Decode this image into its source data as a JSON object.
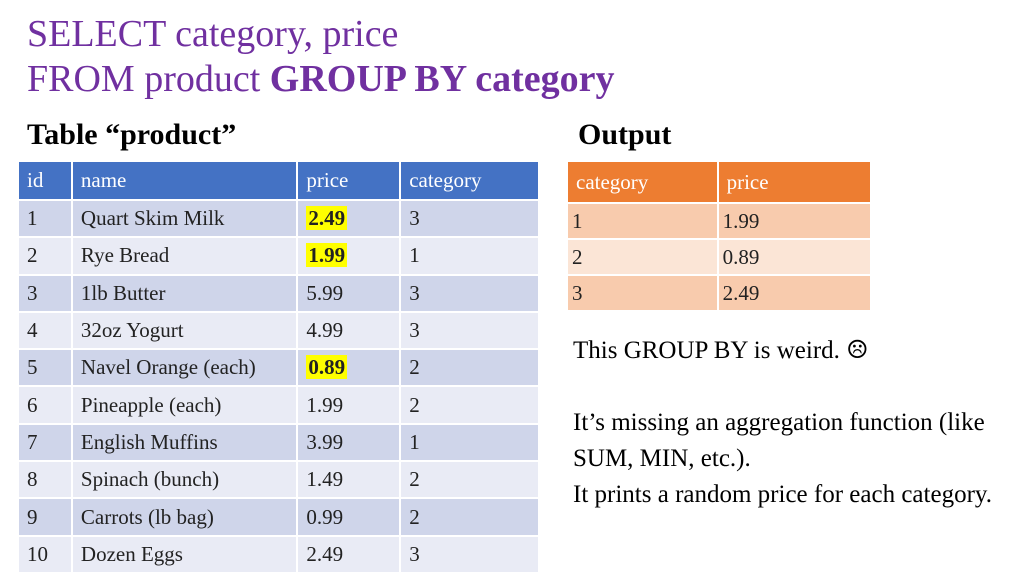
{
  "title": {
    "line1": "SELECT category, price",
    "line2_prefix": "FROM product ",
    "line2_bold": "GROUP BY category"
  },
  "product_table": {
    "heading": "Table “product”",
    "columns": [
      "id",
      "name",
      "price",
      "category"
    ],
    "rows": [
      {
        "id": "1",
        "name": "Quart Skim Milk",
        "price": "2.49",
        "category": "3",
        "highlight": true
      },
      {
        "id": "2",
        "name": "Rye Bread",
        "price": "1.99",
        "category": "1",
        "highlight": true
      },
      {
        "id": "3",
        "name": "1lb Butter",
        "price": "5.99",
        "category": "3",
        "highlight": false
      },
      {
        "id": "4",
        "name": "32oz Yogurt",
        "price": "4.99",
        "category": "3",
        "highlight": false
      },
      {
        "id": "5",
        "name": "Navel Orange (each)",
        "price": "0.89",
        "category": "2",
        "highlight": true
      },
      {
        "id": "6",
        "name": "Pineapple (each)",
        "price": "1.99",
        "category": "2",
        "highlight": false
      },
      {
        "id": "7",
        "name": "English Muffins",
        "price": "3.99",
        "category": "1",
        "highlight": false
      },
      {
        "id": "8",
        "name": "Spinach (bunch)",
        "price": "1.49",
        "category": "2",
        "highlight": false
      },
      {
        "id": "9",
        "name": "Carrots (lb bag)",
        "price": "0.99",
        "category": "2",
        "highlight": false
      },
      {
        "id": "10",
        "name": "Dozen Eggs",
        "price": "2.49",
        "category": "3",
        "highlight": false
      }
    ]
  },
  "output_table": {
    "heading": "Output",
    "columns": [
      "category",
      "price"
    ],
    "rows": [
      {
        "category": "1",
        "price": "1.99"
      },
      {
        "category": "2",
        "price": "0.89"
      },
      {
        "category": "3",
        "price": "2.49"
      }
    ]
  },
  "notes": {
    "line1": "This GROUP BY is weird.  ☹",
    "line2": "It’s missing an aggregation function (like SUM, MIN, etc.).",
    "line3": "It prints a random price for each category."
  },
  "colors": {
    "title": "#7030a0",
    "product_header": "#4472c4",
    "output_header": "#ed7d31",
    "highlight": "#ffff00"
  }
}
